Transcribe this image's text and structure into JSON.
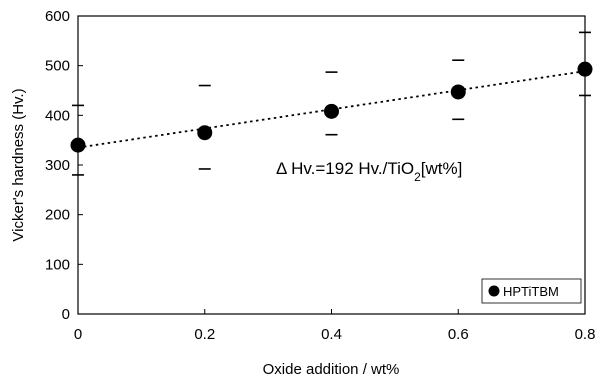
{
  "chart_data": {
    "type": "scatter",
    "title": "",
    "xlabel": "Oxide addition / wt%",
    "ylabel": "Vicker's hardness (Hv.)",
    "xlim": [
      0,
      0.8
    ],
    "ylim": [
      0,
      600
    ],
    "x_ticks": [
      "0",
      "0.2",
      "0.4",
      "0.6",
      "0.8"
    ],
    "y_ticks": [
      "0",
      "100",
      "200",
      "300",
      "400",
      "500",
      "600"
    ],
    "grid": false,
    "legend_position": "bottom-right",
    "series": [
      {
        "name": "HPTiTBM",
        "marker": "filled-circle",
        "color": "#000000",
        "x": [
          0,
          0.2,
          0.4,
          0.6,
          0.8
        ],
        "y": [
          340,
          365,
          408,
          447,
          493
        ],
        "error_upper": [
          420,
          460,
          487,
          511,
          567
        ],
        "error_lower": [
          280,
          292,
          361,
          392,
          440
        ]
      }
    ],
    "trendline": {
      "style": "dotted",
      "x": [
        0,
        0.8
      ],
      "y": [
        335,
        489
      ]
    },
    "annotation": {
      "prefix": "Δ Hv.=192 Hv./TiO",
      "subscript": "2",
      "suffix": "[wt%]"
    }
  }
}
